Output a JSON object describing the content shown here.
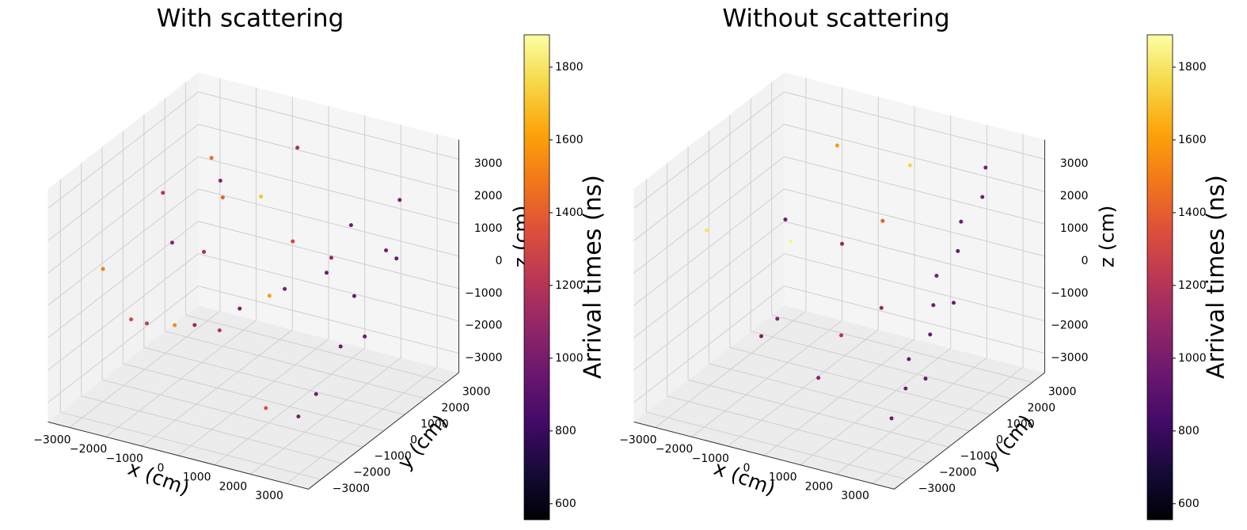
{
  "chart_data": [
    {
      "type": "scatter3d",
      "title": "With scattering",
      "xlabel": "x (cm)",
      "ylabel": "y (cm)",
      "zlabel": "z (cm)",
      "xlim": [
        -3600,
        3600
      ],
      "ylim": [
        -3600,
        3600
      ],
      "zlim": [
        -3600,
        3600
      ],
      "xticks": [
        {
          "value": -3000,
          "label": "−3000"
        },
        {
          "value": -2000,
          "label": "−2000"
        },
        {
          "value": -1000,
          "label": "−1000"
        },
        0,
        1000,
        2000,
        3000
      ],
      "yticks": [
        {
          "value": -3000,
          "label": "−3000"
        },
        {
          "value": -2000,
          "label": "−2000"
        },
        {
          "value": -1000,
          "label": "−1000"
        },
        0,
        1000,
        2000,
        3000
      ],
      "zticks": [
        {
          "value": -3000,
          "label": "−3000"
        },
        {
          "value": -2000,
          "label": "−2000"
        },
        {
          "value": -1000,
          "label": "−1000"
        },
        0,
        1000,
        2000,
        3000
      ],
      "x": [
        -3000,
        -2800,
        -2500,
        -2200,
        -2000,
        -1500,
        -1200,
        -1000,
        -500,
        0,
        500,
        1000,
        1500,
        -2600,
        -1800,
        -800,
        200,
        800,
        -2000,
        -400,
        2600,
        2700,
        2500,
        2800,
        2600,
        2400,
        2700,
        2500,
        2800,
        2600
      ],
      "y": [
        -2000,
        -1000,
        0,
        1000,
        2000,
        -2500,
        500,
        2500,
        -1500,
        1500,
        -500,
        2000,
        -2000,
        2500,
        1500,
        -2500,
        -1000,
        500,
        -300,
        2800,
        -1500,
        -500,
        500,
        1500,
        2500,
        -2000,
        0,
        1000,
        2000,
        -1000
      ],
      "z": [
        500,
        -1500,
        2000,
        -2500,
        1000,
        -500,
        2500,
        -2000,
        1500,
        -1000,
        3000,
        0,
        -2500,
        1800,
        -2800,
        2200,
        -300,
        1200,
        -1800,
        2600,
        -2000,
        -1000,
        0,
        1000,
        2000,
        -2500,
        2500,
        -1500,
        500,
        1500
      ],
      "values": [
        1500,
        1300,
        1200,
        1100,
        1400,
        1250,
        1050,
        1600,
        1150,
        1000,
        1700,
        1100,
        1350,
        1450,
        1200,
        1050,
        1000,
        1300,
        1550,
        1150,
        980,
        960,
        970,
        990,
        1000,
        1010,
        980,
        970,
        960,
        990
      ],
      "colormap": "inferno",
      "colorbar": {
        "label": "Arrival times (ns)",
        "lim": [
          556,
          1889
        ],
        "ticks": [
          600,
          800,
          1000,
          1200,
          1400,
          1600,
          1800
        ]
      }
    },
    {
      "type": "scatter3d",
      "title": "Without scattering",
      "xlabel": "x (cm)",
      "ylabel": "y (cm)",
      "zlabel": "z (cm)",
      "xlim": [
        -3600,
        3600
      ],
      "ylim": [
        -3600,
        3600
      ],
      "zlim": [
        -3600,
        3600
      ],
      "xticks": [
        {
          "value": -3000,
          "label": "−3000"
        },
        {
          "value": -2000,
          "label": "−2000"
        },
        {
          "value": -1000,
          "label": "−1000"
        },
        0,
        1000,
        2000,
        3000
      ],
      "yticks": [
        {
          "value": -3000,
          "label": "−3000"
        },
        {
          "value": -2000,
          "label": "−2000"
        },
        {
          "value": -1000,
          "label": "−1000"
        },
        0,
        1000,
        2000,
        3000
      ],
      "zticks": [
        {
          "value": -3000,
          "label": "−3000"
        },
        {
          "value": -2000,
          "label": "−2000"
        },
        {
          "value": -1000,
          "label": "−1000"
        },
        0,
        1000,
        2000,
        3000
      ],
      "x": [
        -2800,
        -2000,
        -1500,
        -1000,
        -500,
        0,
        800,
        1500,
        -2500,
        -1200,
        300,
        1200,
        2600,
        2700,
        2500,
        2800,
        2600,
        2400,
        2700,
        2500,
        2800,
        2600,
        2500,
        2700
      ],
      "y": [
        -1500,
        500,
        2500,
        -2000,
        1000,
        -1000,
        2000,
        -2500,
        2000,
        -500,
        1500,
        0,
        -2000,
        -1500,
        -1000,
        -500,
        0,
        500,
        1000,
        1500,
        2000,
        2500,
        -200,
        800
      ],
      "z": [
        1500,
        -2000,
        2500,
        -1000,
        500,
        -2500,
        2800,
        0,
        -500,
        1800,
        -1500,
        2200,
        -2500,
        -1800,
        -1200,
        -600,
        0,
        600,
        1200,
        1800,
        2400,
        3000,
        -2200,
        -300
      ],
      "values": [
        1800,
        1050,
        1600,
        1000,
        1100,
        1050,
        1750,
        1200,
        1850,
        1000,
        1100,
        1400,
        990,
        980,
        970,
        960,
        990,
        1000,
        970,
        980,
        990,
        1000,
        960,
        980
      ],
      "colormap": "inferno",
      "colorbar": {
        "label": "Arrival times (ns)",
        "lim": [
          556,
          1889
        ],
        "ticks": [
          600,
          800,
          1000,
          1200,
          1400,
          1600,
          1800
        ]
      }
    }
  ]
}
